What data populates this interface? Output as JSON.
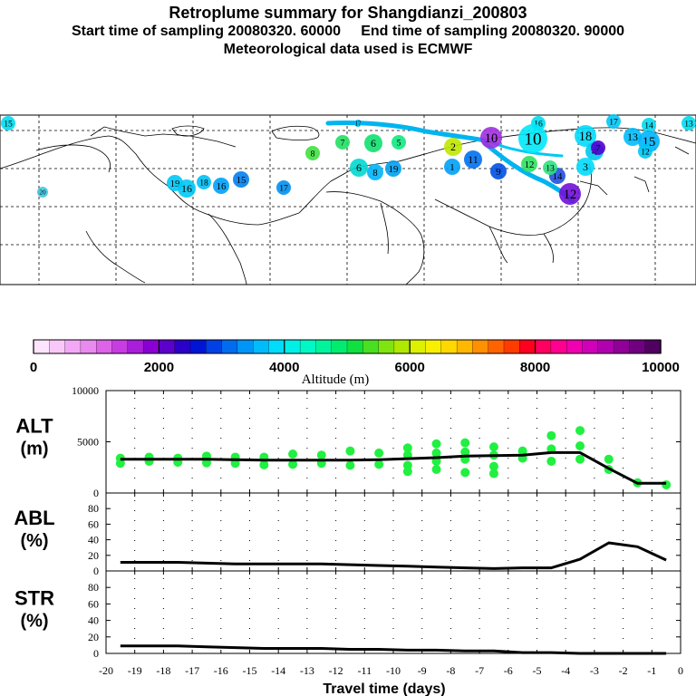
{
  "header": {
    "title": "Retroplume summary for Shangdianzi_200803",
    "subtitle": "Start time of sampling 20080320. 60000     End time of sampling 20080320. 90000",
    "met": "Meteorological data used is ECMWF"
  },
  "map_labels": [
    "15",
    "17",
    "16",
    "7",
    "8",
    "6",
    "5",
    "10",
    "18",
    "17",
    "14",
    "13",
    "15",
    "13",
    "12",
    "11",
    "9",
    "10",
    "12",
    "14",
    "13",
    "12",
    "2",
    "1",
    "3",
    "4",
    "7",
    "6",
    "8",
    "19",
    "15",
    "16",
    "18",
    "19",
    "17",
    "16",
    "20"
  ],
  "colorbar": {
    "ticks": [
      "0",
      "2000",
      "4000",
      "6000",
      "8000",
      "10000"
    ],
    "label": "Altitude (m)",
    "colors": [
      "#fde4fd",
      "#f9c8f9",
      "#f3a8f5",
      "#e98aef",
      "#dd64e7",
      "#c83de1",
      "#a91ed9",
      "#8a00d4",
      "#5c00cc",
      "#2b00c8",
      "#0014d6",
      "#0040e4",
      "#006cf0",
      "#0096f8",
      "#00bcfc",
      "#00dcfc",
      "#00f0e8",
      "#00f8c4",
      "#00f49c",
      "#00ec70",
      "#10e040",
      "#48e020",
      "#80e410",
      "#b0e800",
      "#dcf000",
      "#f8f000",
      "#ffd800",
      "#ffb800",
      "#ff9000",
      "#ff6400",
      "#ff3c00",
      "#ff0020",
      "#ff0060",
      "#ff0090",
      "#f000b0",
      "#d000b8",
      "#b000b0",
      "#900098",
      "#700080",
      "#500060"
    ]
  },
  "chart_data": [
    {
      "type": "line",
      "name": "ALT",
      "ylabel": "ALT\n(m)",
      "ylim": [
        0,
        10000
      ],
      "yticks": [
        "0",
        "5000",
        "10000"
      ],
      "x": [
        -19.5,
        -18.5,
        -17.5,
        -16.5,
        -15.5,
        -14.5,
        -13.5,
        -12.5,
        -11.5,
        -10.5,
        -9.5,
        -8.5,
        -7.5,
        -6.5,
        -5.5,
        -4.5,
        -3.5,
        -2.5,
        -1.5,
        -0.5
      ],
      "values": [
        3300,
        3300,
        3300,
        3300,
        3250,
        3200,
        3200,
        3200,
        3200,
        3250,
        3350,
        3450,
        3600,
        3650,
        3700,
        3950,
        3950,
        2400,
        950,
        950
      ],
      "scatter": [
        [
          -19.5,
          3400
        ],
        [
          -19.5,
          2900
        ],
        [
          -18.5,
          3500
        ],
        [
          -18.5,
          3100
        ],
        [
          -17.5,
          3400
        ],
        [
          -17.5,
          3000
        ],
        [
          -16.5,
          3600
        ],
        [
          -16.5,
          2950
        ],
        [
          -15.5,
          3500
        ],
        [
          -15.5,
          2900
        ],
        [
          -14.5,
          3500
        ],
        [
          -14.5,
          2750
        ],
        [
          -13.5,
          3800
        ],
        [
          -13.5,
          2800
        ],
        [
          -12.5,
          3700
        ],
        [
          -12.5,
          2900
        ],
        [
          -11.5,
          4100
        ],
        [
          -11.5,
          2700
        ],
        [
          -10.5,
          3900
        ],
        [
          -10.5,
          2800
        ],
        [
          -9.5,
          4400
        ],
        [
          -9.5,
          3700
        ],
        [
          -9.5,
          2700
        ],
        [
          -9.5,
          2100
        ],
        [
          -8.5,
          4800
        ],
        [
          -8.5,
          3900
        ],
        [
          -8.5,
          3100
        ],
        [
          -8.5,
          2300
        ],
        [
          -7.5,
          4900
        ],
        [
          -7.5,
          4000
        ],
        [
          -7.5,
          3300
        ],
        [
          -7.5,
          2000
        ],
        [
          -6.5,
          4500
        ],
        [
          -6.5,
          3700
        ],
        [
          -6.5,
          2600
        ],
        [
          -6.5,
          1900
        ],
        [
          -5.5,
          4100
        ],
        [
          -5.5,
          3400
        ],
        [
          -4.5,
          5600
        ],
        [
          -4.5,
          4300
        ],
        [
          -4.5,
          3100
        ],
        [
          -3.5,
          6100
        ],
        [
          -3.5,
          4600
        ],
        [
          -3.5,
          3300
        ],
        [
          -2.5,
          3300
        ],
        [
          -2.5,
          2300
        ],
        [
          -1.5,
          1000
        ],
        [
          -0.5,
          800
        ]
      ]
    },
    {
      "type": "line",
      "name": "ABL",
      "ylabel": "ABL\n(%)",
      "ylim": [
        0,
        100
      ],
      "yticks": [
        "0",
        "20",
        "40",
        "60",
        "80"
      ],
      "x": [
        -19.5,
        -18.5,
        -17.5,
        -16.5,
        -15.5,
        -14.5,
        -13.5,
        -12.5,
        -11.5,
        -10.5,
        -9.5,
        -8.5,
        -7.5,
        -6.5,
        -5.5,
        -4.5,
        -3.5,
        -2.5,
        -1.5,
        -0.5
      ],
      "values": [
        11,
        11,
        11,
        10,
        9,
        9,
        9,
        9,
        8,
        7,
        6,
        5,
        4,
        3,
        4,
        4,
        15,
        36,
        31,
        14
      ]
    },
    {
      "type": "line",
      "name": "STR",
      "ylabel": "STR\n(%)",
      "ylim": [
        0,
        100
      ],
      "yticks": [
        "0",
        "20",
        "40",
        "60",
        "80"
      ],
      "xlabel": "Travel time (days)",
      "xticks": [
        "-20",
        "-19",
        "-18",
        "-17",
        "-16",
        "-15",
        "-14",
        "-13",
        "-12",
        "-11",
        "-10",
        "-9",
        "-8",
        "-7",
        "-6",
        "-5",
        "-4",
        "-3",
        "-2",
        "-1",
        "0"
      ],
      "x": [
        -19.5,
        -18.5,
        -17.5,
        -16.5,
        -15.5,
        -14.5,
        -13.5,
        -12.5,
        -11.5,
        -10.5,
        -9.5,
        -8.5,
        -7.5,
        -6.5,
        -5.5,
        -4.5,
        -3.5,
        -2.5,
        -1.5,
        -0.5
      ],
      "values": [
        9,
        9,
        9,
        8,
        7,
        6,
        6,
        6,
        5,
        5,
        4,
        4,
        3,
        3,
        1,
        1,
        0,
        0,
        0,
        0
      ]
    }
  ]
}
